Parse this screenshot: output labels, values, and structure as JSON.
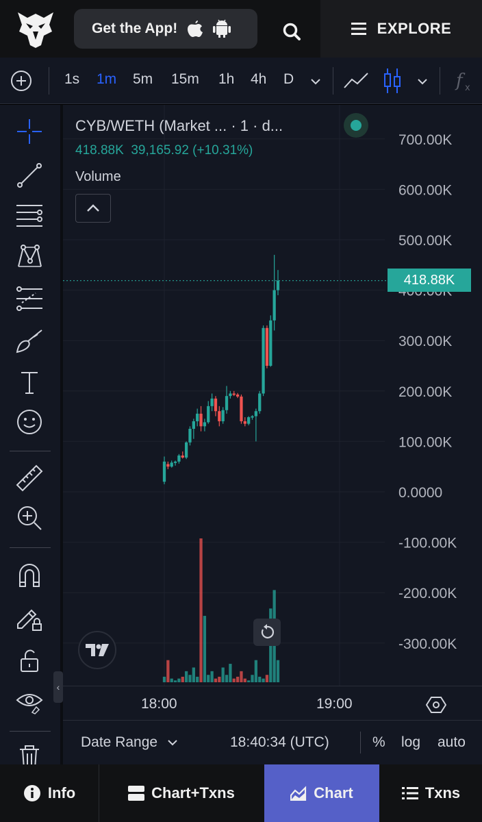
{
  "header": {
    "get_app_label": "Get the App!",
    "explore_label": "EXPLORE"
  },
  "toolbar": {
    "intervals": [
      "1s",
      "1m",
      "5m",
      "15m",
      "1h",
      "4h",
      "D"
    ],
    "active_interval": "1m",
    "chart_type": "candles"
  },
  "chart": {
    "title": "CYB/WETH (Market ... · 1 · d...",
    "legend_price": "418.88K",
    "legend_change": "39,165.92 (+10.31%)",
    "volume_label": "Volume",
    "price_tag": "418.88K",
    "time_labels": [
      "18:00",
      "19:00"
    ],
    "date_range_label": "Date Range",
    "clock": "18:40:34 (UTC)",
    "pct_label": "%",
    "log_label": "log",
    "auto_label": "auto",
    "colors": {
      "up": "#26a69a",
      "down": "#ef5350",
      "background": "#131722"
    }
  },
  "chart_data": {
    "type": "candlestick",
    "title": "CYB/WETH (Market ... · 1 · d...",
    "y_ticks": [
      "700.00K",
      "600.00K",
      "500.00K",
      "400.00K",
      "300.00K",
      "200.00K",
      "100.00K",
      "0.0000",
      "-100.00K",
      "-200.00K",
      "-300.00K"
    ],
    "x_ticks": [
      "18:00",
      "19:00"
    ],
    "ylim": [
      -350000,
      740000
    ],
    "last_price": 418880,
    "candles": [
      {
        "o": 20000,
        "h": 70000,
        "l": 15000,
        "c": 60000
      },
      {
        "o": 55000,
        "h": 60000,
        "l": 45000,
        "c": 50000
      },
      {
        "o": 50000,
        "h": 62000,
        "l": 48000,
        "c": 58000
      },
      {
        "o": 58000,
        "h": 62000,
        "l": 52000,
        "c": 60000
      },
      {
        "o": 60000,
        "h": 75000,
        "l": 56000,
        "c": 72000
      },
      {
        "o": 72000,
        "h": 80000,
        "l": 66000,
        "c": 68000
      },
      {
        "o": 68000,
        "h": 100000,
        "l": 65000,
        "c": 98000
      },
      {
        "o": 98000,
        "h": 130000,
        "l": 92000,
        "c": 125000
      },
      {
        "o": 125000,
        "h": 145000,
        "l": 105000,
        "c": 140000
      },
      {
        "o": 140000,
        "h": 165000,
        "l": 130000,
        "c": 155000
      },
      {
        "o": 155000,
        "h": 170000,
        "l": 120000,
        "c": 130000
      },
      {
        "o": 130000,
        "h": 145000,
        "l": 120000,
        "c": 138000
      },
      {
        "o": 138000,
        "h": 180000,
        "l": 135000,
        "c": 170000
      },
      {
        "o": 170000,
        "h": 195000,
        "l": 160000,
        "c": 185000
      },
      {
        "o": 185000,
        "h": 190000,
        "l": 150000,
        "c": 160000
      },
      {
        "o": 160000,
        "h": 170000,
        "l": 130000,
        "c": 140000
      },
      {
        "o": 140000,
        "h": 168000,
        "l": 135000,
        "c": 162000
      },
      {
        "o": 162000,
        "h": 210000,
        "l": 155000,
        "c": 190000
      },
      {
        "o": 190000,
        "h": 200000,
        "l": 185000,
        "c": 195000
      },
      {
        "o": 195000,
        "h": 200000,
        "l": 190000,
        "c": 193000
      },
      {
        "o": 193000,
        "h": 196000,
        "l": 186000,
        "c": 189000
      },
      {
        "o": 189000,
        "h": 193000,
        "l": 135000,
        "c": 140000
      },
      {
        "o": 140000,
        "h": 148000,
        "l": 130000,
        "c": 135000
      },
      {
        "o": 135000,
        "h": 150000,
        "l": 132000,
        "c": 148000
      },
      {
        "o": 148000,
        "h": 152000,
        "l": 143000,
        "c": 150000
      },
      {
        "o": 150000,
        "h": 165000,
        "l": 100000,
        "c": 160000
      },
      {
        "o": 160000,
        "h": 200000,
        "l": 155000,
        "c": 195000
      },
      {
        "o": 195000,
        "h": 330000,
        "l": 190000,
        "c": 325000
      },
      {
        "o": 325000,
        "h": 330000,
        "l": 245000,
        "c": 250000
      },
      {
        "o": 250000,
        "h": 350000,
        "l": 248000,
        "c": 340000
      },
      {
        "o": 340000,
        "h": 470000,
        "l": 320000,
        "c": 400000
      },
      {
        "o": 400000,
        "h": 440000,
        "l": 390000,
        "c": 418880
      }
    ],
    "volume": [
      3,
      12,
      2,
      1,
      2,
      3,
      6,
      4,
      8,
      3,
      78,
      36,
      4,
      6,
      2,
      3,
      8,
      4,
      10,
      2,
      3,
      6,
      2,
      1,
      4,
      12,
      3,
      2,
      4,
      40,
      50,
      12
    ]
  },
  "bottom_nav": {
    "tabs": [
      {
        "label": "Info",
        "icon": "info-icon"
      },
      {
        "label": "Chart+Txns",
        "icon": "split-view-icon"
      },
      {
        "label": "Chart",
        "icon": "chart-area-icon"
      },
      {
        "label": "Txns",
        "icon": "list-icon"
      }
    ],
    "active": "Chart",
    "active_color": "#5560c8"
  }
}
